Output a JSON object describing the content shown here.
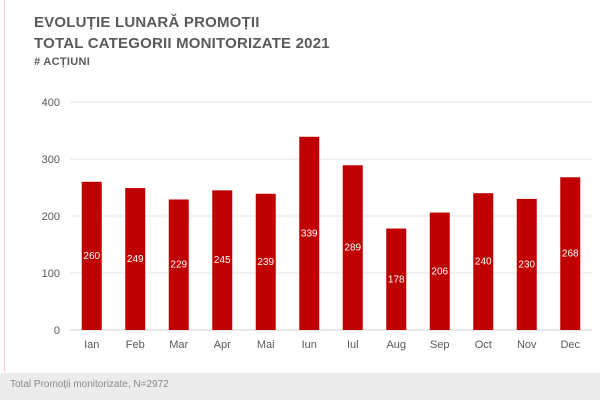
{
  "header": {
    "title_line1": "EVOLUȚIE LUNARĂ PROMOȚII",
    "title_line2": "TOTAL CATEGORII MONITORIZATE 2021",
    "subtitle": "# ACȚIUNI"
  },
  "footer": {
    "note": "Total Promoții monitorizate, N=2972"
  },
  "colors": {
    "bar": "#c00000",
    "bar_label": "#ffffff",
    "axis_text": "#595959",
    "grid": "#e6e6e6"
  },
  "chart_data": {
    "type": "bar",
    "title": "EVOLUȚIE LUNARĂ PROMOȚII",
    "subtitle": "TOTAL CATEGORII MONITORIZATE 2021",
    "ylabel": "# ACȚIUNI",
    "xlabel": "",
    "categories": [
      "Ian",
      "Feb",
      "Mar",
      "Apr",
      "Mai",
      "Iun",
      "Iul",
      "Aug",
      "Sep",
      "Oct",
      "Nov",
      "Dec"
    ],
    "values": [
      260,
      249,
      229,
      245,
      239,
      339,
      289,
      178,
      206,
      240,
      230,
      268
    ],
    "ylim": [
      0,
      400
    ],
    "yticks": [
      0,
      100,
      200,
      300,
      400
    ],
    "grid": true,
    "legend": "none",
    "data_labels": true
  }
}
